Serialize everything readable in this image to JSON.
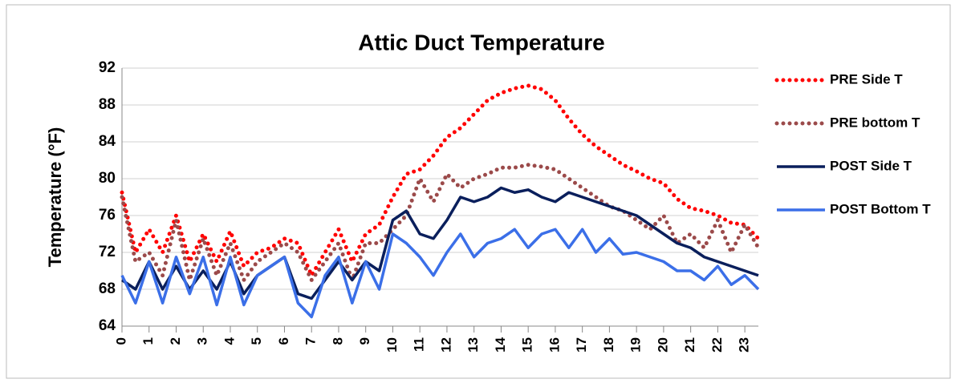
{
  "chart_data": {
    "type": "line",
    "title": "Attic Duct Temperature",
    "ylabel": "Temperature  (°F)",
    "x": [
      0,
      0.5,
      1,
      1.5,
      2,
      2.5,
      3,
      3.5,
      4,
      4.5,
      5,
      5.5,
      6,
      6.5,
      7,
      7.5,
      8,
      8.5,
      9,
      9.5,
      10,
      10.5,
      11,
      11.5,
      12,
      12.5,
      13,
      13.5,
      14,
      14.5,
      15,
      15.5,
      16,
      16.5,
      17,
      17.5,
      18,
      18.5,
      19,
      19.5,
      20,
      20.5,
      21,
      21.5,
      22,
      22.5,
      23,
      23.5
    ],
    "xlim": [
      0,
      23.5
    ],
    "xticks": [
      0,
      1,
      2,
      3,
      4,
      5,
      6,
      7,
      8,
      9,
      10,
      11,
      12,
      13,
      14,
      15,
      16,
      17,
      18,
      19,
      20,
      21,
      22,
      23
    ],
    "ylim": [
      64,
      92
    ],
    "yticks": [
      64,
      68,
      72,
      76,
      80,
      84,
      88,
      92
    ],
    "grid": true,
    "legend": "right",
    "series": [
      {
        "name": "PRE Side T",
        "color": "#ff0000",
        "style": "dotted",
        "values": [
          78.5,
          72,
          74.5,
          72,
          76,
          71,
          74,
          71,
          74.3,
          70.5,
          72,
          72.5,
          73.5,
          73,
          69.5,
          72,
          74.5,
          71,
          74,
          75,
          78,
          80.5,
          81,
          82.5,
          84.5,
          85.5,
          87,
          88.5,
          89.3,
          89.8,
          90.1,
          89.7,
          88.5,
          86.5,
          84.8,
          83.5,
          82.5,
          81.5,
          80.8,
          80,
          79.5,
          77.8,
          76.8,
          76.5,
          76,
          75.2,
          75,
          73.5
        ]
      },
      {
        "name": "PRE bottom T",
        "color": "#9b4a4a",
        "style": "dotted",
        "values": [
          78,
          71,
          72,
          69.5,
          75.5,
          69,
          73.5,
          69.5,
          73,
          69,
          71,
          72,
          73,
          72,
          69,
          71,
          73,
          69,
          73,
          73,
          74.5,
          76,
          80,
          77.5,
          80.5,
          79,
          80,
          80.5,
          81.2,
          81.2,
          81.5,
          81.3,
          81,
          80,
          79,
          78,
          77,
          76.5,
          75.5,
          74.5,
          76,
          73,
          74,
          72.5,
          75.5,
          72,
          75,
          72.5
        ]
      },
      {
        "name": "POST Side T",
        "color": "#0a1f5c",
        "style": "solid",
        "values": [
          69,
          68,
          71,
          68,
          70.5,
          68,
          70,
          68,
          71,
          67.5,
          69.5,
          70.5,
          71.5,
          67.5,
          67,
          69,
          71,
          69,
          71,
          70,
          75.5,
          76.5,
          74,
          73.5,
          75.5,
          78,
          77.5,
          78,
          79,
          78.5,
          78.8,
          78,
          77.5,
          78.5,
          78,
          77.5,
          77,
          76.5,
          76,
          75,
          74,
          73,
          72.5,
          71.5,
          71,
          70.5,
          70,
          69.5
        ]
      },
      {
        "name": "POST Bottom T",
        "color": "#3b6fe8",
        "style": "solid",
        "values": [
          69.5,
          66.5,
          71,
          66.5,
          71.5,
          67.5,
          71.5,
          66.3,
          71.5,
          66.3,
          69.5,
          70.5,
          71.5,
          66.5,
          65,
          69.5,
          71.5,
          66.5,
          71,
          68,
          74,
          73,
          71.5,
          69.5,
          72,
          74,
          71.5,
          73,
          73.5,
          74.5,
          72.5,
          74,
          74.5,
          72.5,
          74.5,
          72,
          73.5,
          71.8,
          72,
          71.5,
          71,
          70,
          70,
          69,
          70.5,
          68.5,
          69.5,
          68
        ]
      }
    ]
  }
}
